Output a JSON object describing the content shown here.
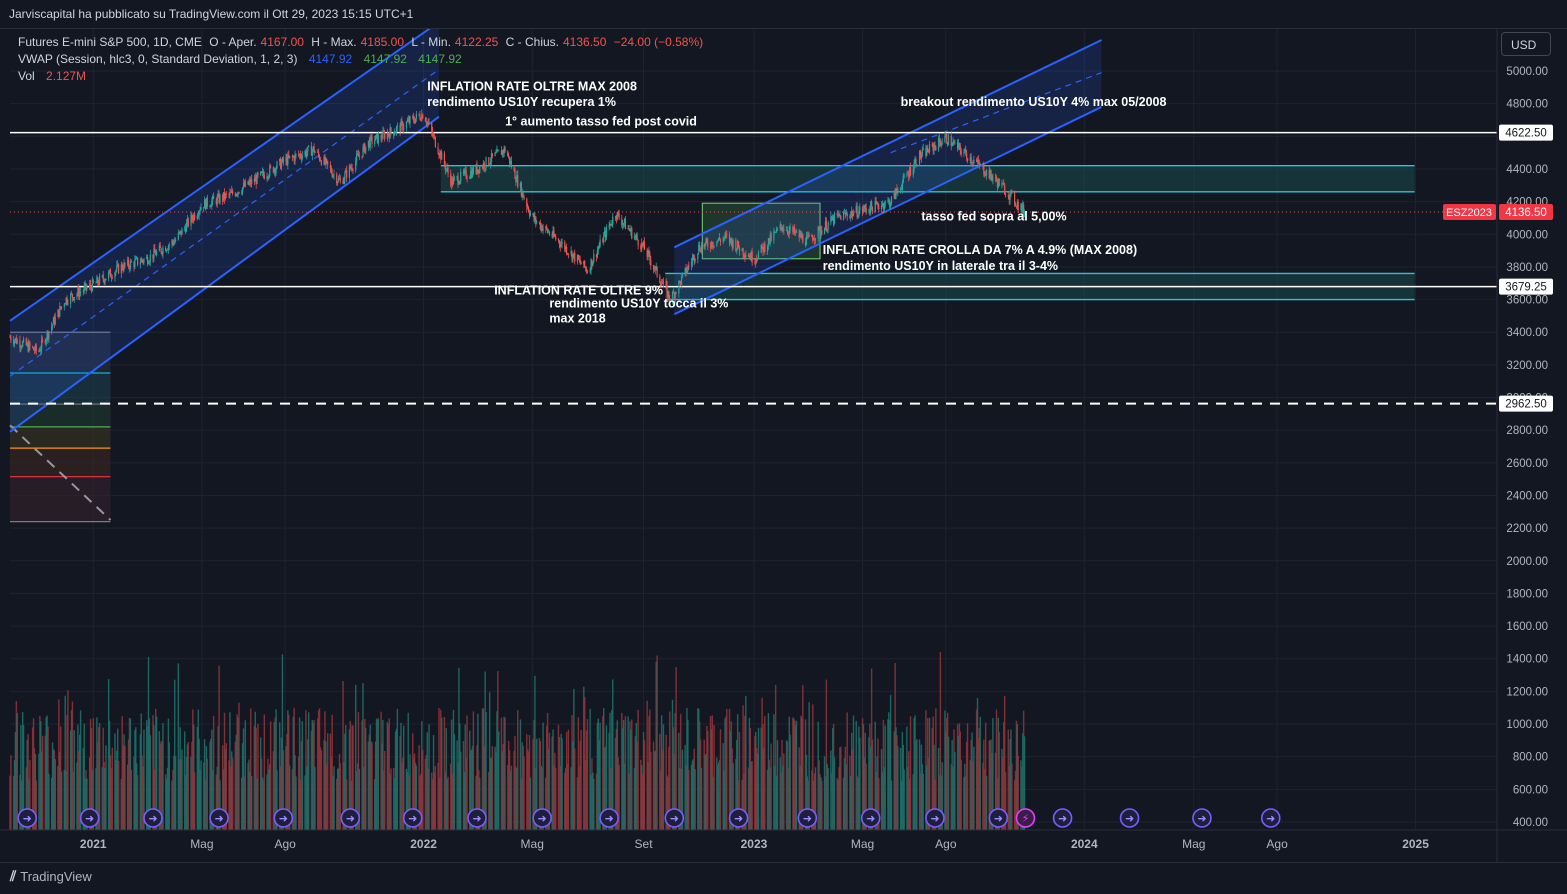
{
  "header": {
    "published": "Jarviscapital ha pubblicato su TradingView.com il Ott 29, 2023 15:15 UTC+1"
  },
  "legend": {
    "line1": {
      "symbol": "Futures E-mini S&P 500, 1D, CME",
      "o_label": "O - Aper.",
      "o_val": "4167.00",
      "h_label": "H - Max.",
      "h_val": "4185.00",
      "l_label": "L - Min.",
      "l_val": "4122.25",
      "c_label": "C - Chius.",
      "c_val": "4136.50",
      "change": "−24.00 (−0.58%)"
    },
    "line2": {
      "label": "VWAP (Session, hlc3, 0, Standard Deviation, 1, 2, 3)",
      "v1": "4147.92",
      "v2": "4147.92",
      "v3": "4147.92"
    },
    "line3": {
      "label": "Vol",
      "value": "2.127M"
    }
  },
  "currency_button": "USD",
  "footer": {
    "brand": "TradingView"
  },
  "colors": {
    "up": "#26a69a",
    "down": "#ef5350",
    "channel": "#2962ff",
    "zone": "#26c6da",
    "text": "#d1d4dc"
  },
  "chart_data": {
    "type": "candlestick",
    "x": [
      "2020-10-01",
      "2020-11-01",
      "2020-12-01",
      "2021-01-01",
      "2021-02-01",
      "2021-03-01",
      "2021-04-01",
      "2021-05-01",
      "2021-06-01",
      "2021-07-01",
      "2021-08-01",
      "2021-09-01",
      "2021-10-01",
      "2021-11-01",
      "2021-12-01",
      "2022-01-01",
      "2022-02-01",
      "2022-03-01",
      "2022-04-01",
      "2022-05-01",
      "2022-06-01",
      "2022-07-01",
      "2022-08-01",
      "2022-09-01",
      "2022-10-01",
      "2022-11-01",
      "2022-12-01",
      "2023-01-01",
      "2023-02-01",
      "2023-03-01",
      "2023-04-01",
      "2023-05-01",
      "2023-06-01",
      "2023-07-01",
      "2023-08-01",
      "2023-09-01",
      "2023-10-01",
      "2023-10-27"
    ],
    "close": [
      3370,
      3280,
      3600,
      3690,
      3800,
      3850,
      3960,
      4180,
      4240,
      4340,
      4450,
      4520,
      4320,
      4560,
      4640,
      4740,
      4320,
      4400,
      4520,
      4100,
      3950,
      3780,
      4130,
      3920,
      3600,
      3920,
      3980,
      3850,
      4050,
      3960,
      4100,
      4150,
      4200,
      4470,
      4590,
      4450,
      4300,
      4136.5
    ],
    "ylim": [
      300,
      5200
    ],
    "y_ticks": [
      "5000.00",
      "4800.00",
      "4600.00",
      "4400.00",
      "4200.00",
      "4000.00",
      "3800.00",
      "3600.00",
      "3400.00",
      "3200.00",
      "3000.00",
      "2800.00",
      "2600.00",
      "2400.00",
      "2200.00",
      "2000.00",
      "1800.00",
      "1600.00",
      "1400.00",
      "1200.00",
      "1000.00",
      "800.00",
      "600.00",
      "400.00"
    ],
    "y_tick_values": [
      5000,
      4800,
      4600,
      4400,
      4200,
      4000,
      3800,
      3600,
      3400,
      3200,
      3000,
      2800,
      2600,
      2400,
      2200,
      2000,
      1800,
      1600,
      1400,
      1200,
      1000,
      800,
      600,
      400
    ],
    "x_ticks": [
      {
        "label": "2021",
        "date": "2021-01-01",
        "bold": true
      },
      {
        "label": "Mag",
        "date": "2021-05-01"
      },
      {
        "label": "Ago",
        "date": "2021-08-01"
      },
      {
        "label": "2022",
        "date": "2022-01-01",
        "bold": true
      },
      {
        "label": "Mag",
        "date": "2022-05-01"
      },
      {
        "label": "Set",
        "date": "2022-09-01"
      },
      {
        "label": "2023",
        "date": "2023-01-01",
        "bold": true
      },
      {
        "label": "Mag",
        "date": "2023-05-01"
      },
      {
        "label": "Ago",
        "date": "2023-08-01"
      },
      {
        "label": "2024",
        "date": "2024-01-01",
        "bold": true
      },
      {
        "label": "Mag",
        "date": "2024-05-01"
      },
      {
        "label": "Ago",
        "date": "2024-08-01"
      },
      {
        "label": "2025",
        "date": "2025-01-01",
        "bold": true
      }
    ],
    "price_labels": [
      {
        "label": "4622.50",
        "value": 4622.5
      },
      {
        "label": "3679.25",
        "value": 3679.25
      },
      {
        "label": "2962.50",
        "value": 2962.5
      }
    ],
    "last_price": {
      "symbol": "ESZ2023",
      "value": "4136.50",
      "price": 4136.5
    },
    "horizontal_levels": [
      {
        "value": 4622.5,
        "style": "solid"
      },
      {
        "value": 3679.25,
        "style": "solid"
      },
      {
        "value": 2962.5,
        "style": "dashed"
      }
    ],
    "zones": [
      {
        "from": "2022-01-20",
        "to": "2024-12-31",
        "low": 4260,
        "high": 4420
      },
      {
        "from": "2022-09-25",
        "to": "2024-12-31",
        "low": 3600,
        "high": 3760
      }
    ],
    "annotations": [
      {
        "text": "INFLATION RATE OLTRE MAX 2008",
        "date": "2022-01-05",
        "price": 4882
      },
      {
        "text": "rendimento US10Y recupera 1%",
        "date": "2022-01-05",
        "price": 4786
      },
      {
        "text": "1° aumento tasso fed post covid",
        "date": "2022-04-01",
        "price": 4666
      },
      {
        "text": "breakout rendimento US10Y 4% max 05/2008",
        "date": "2023-06-12",
        "price": 4785
      },
      {
        "text": "tasso fed sopra al 5,00%",
        "date": "2023-07-05",
        "price": 4085
      },
      {
        "text": "INFLATION RATE CROLLA DA 7% A 4.9% (MAX 2008)",
        "date": "2023-03-18",
        "price": 3880
      },
      {
        "text": "rendimento US10Y in laterale tra il 3-4%",
        "date": "2023-03-18",
        "price": 3782
      },
      {
        "text": "INFLATION RATE OLTRE 9%",
        "date": "2022-03-20",
        "price": 3630
      },
      {
        "text": "rendimento US10Y tocca il 3%",
        "date": "2022-05-20",
        "price": 3550
      },
      {
        "text": "max 2018",
        "date": "2022-05-20",
        "price": 3460
      }
    ]
  }
}
